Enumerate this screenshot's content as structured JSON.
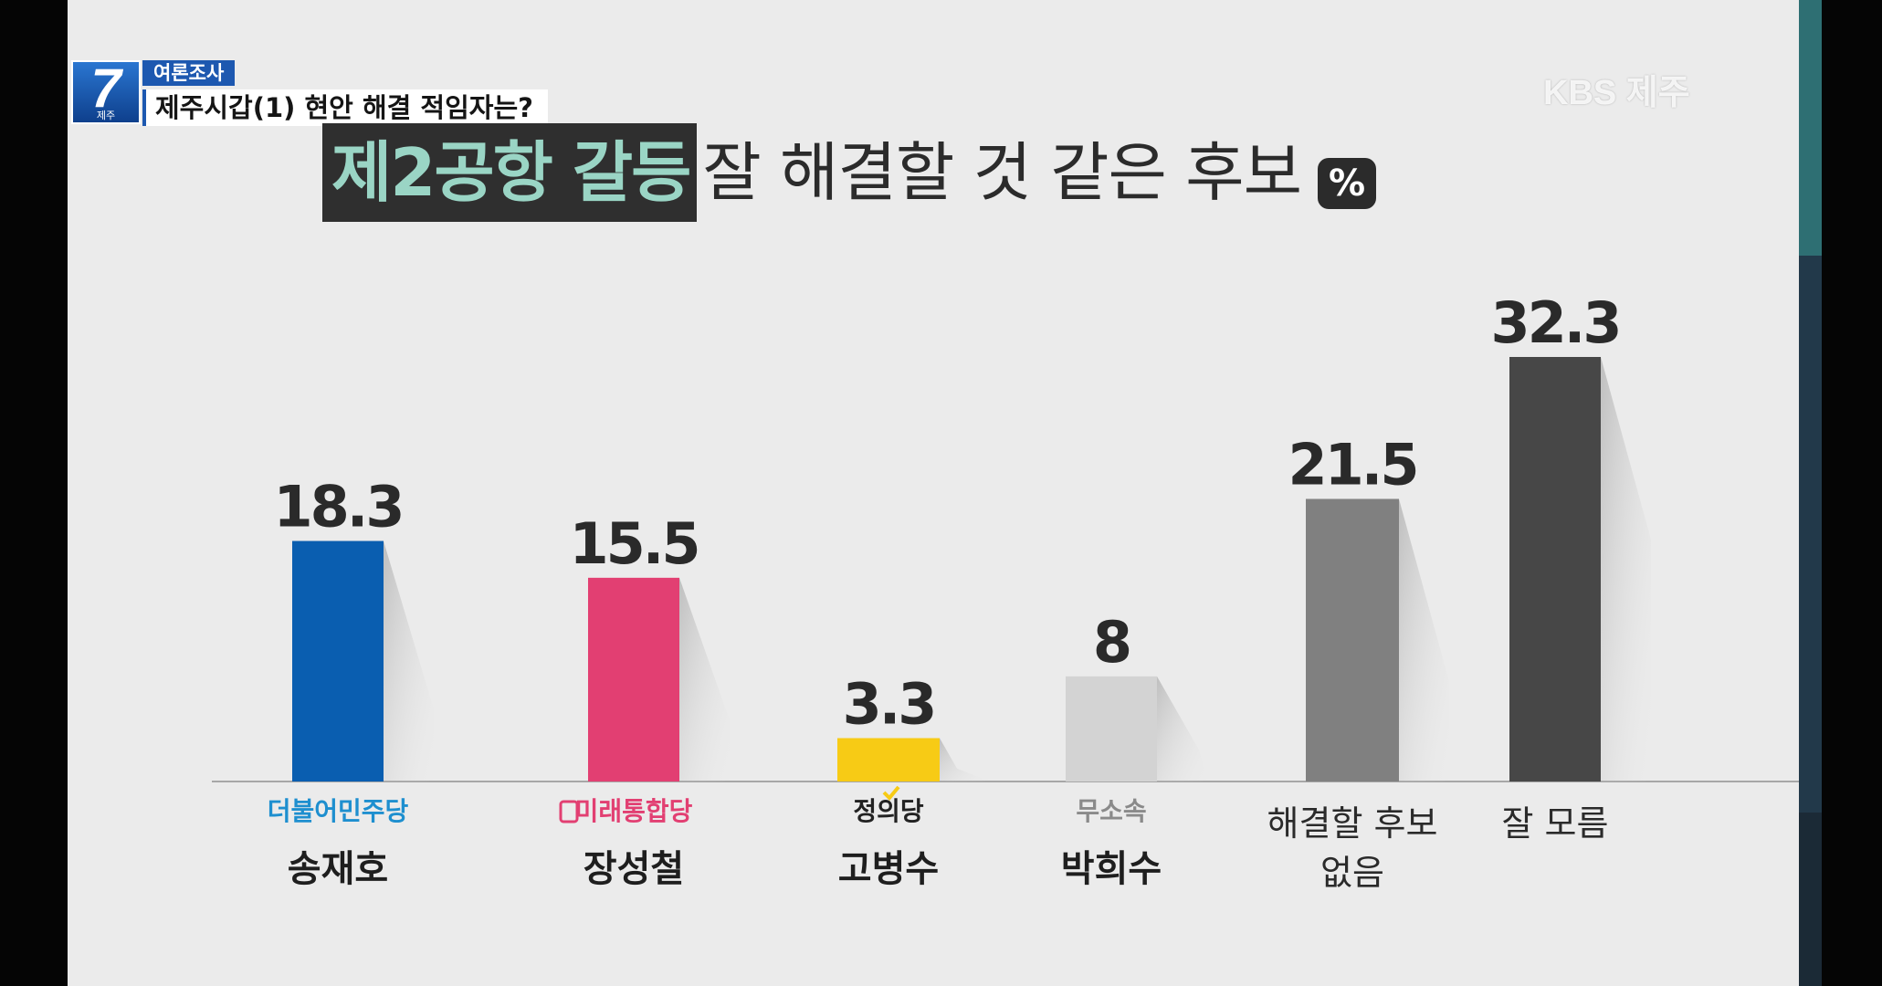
{
  "broadcast": {
    "logo_number": "7",
    "logo_sub": "제주",
    "category_tag": "여론조사",
    "topic_title": "제주시갑(1) 현안 해결 적임자는?",
    "watermark": "KBS 제주"
  },
  "headline": {
    "highlight": "제2공항 갈등",
    "rest": "잘 해결할 것 같은 후보",
    "unit_badge": "%"
  },
  "colors": {
    "highlight_text": "#9ad5c5",
    "highlight_bg": "#2f2f2f",
    "minju": "#0a5eb0",
    "mirae": "#e23f72",
    "jeongui": "#f7cb15",
    "independent": "#d3d3d3",
    "no_candidate": "#808080",
    "unknown": "#474747"
  },
  "chart_data": {
    "type": "bar",
    "title": "제2공항 갈등 잘 해결할 것 같은 후보",
    "unit": "%",
    "ylim": [
      0,
      35
    ],
    "grid": false,
    "categories": [
      {
        "party": "더불어민주당",
        "label": "송재호",
        "value": 18.3,
        "value_label": "18.3",
        "color": "#0a5eb0",
        "party_color": "#1e8fcf"
      },
      {
        "party": "미래통합당",
        "label": "장성철",
        "value": 15.5,
        "value_label": "15.5",
        "color": "#e23f72",
        "party_color": "#e23f72"
      },
      {
        "party": "정의당",
        "label": "고병수",
        "value": 3.3,
        "value_label": "3.3",
        "color": "#f7cb15",
        "party_color": "#222222"
      },
      {
        "party": "무소속",
        "label": "박희수",
        "value": 8,
        "value_label": "8",
        "color": "#d3d3d3",
        "party_color": "#8a8a8a"
      },
      {
        "party": "",
        "label": "해결할 후보 없음",
        "label_lines": [
          "해결할 후보",
          "없음"
        ],
        "value": 21.5,
        "value_label": "21.5",
        "color": "#808080",
        "party_color": ""
      },
      {
        "party": "",
        "label": "잘 모름",
        "label_lines": [
          "잘 모름"
        ],
        "value": 32.3,
        "value_label": "32.3",
        "color": "#474747",
        "party_color": ""
      }
    ]
  }
}
